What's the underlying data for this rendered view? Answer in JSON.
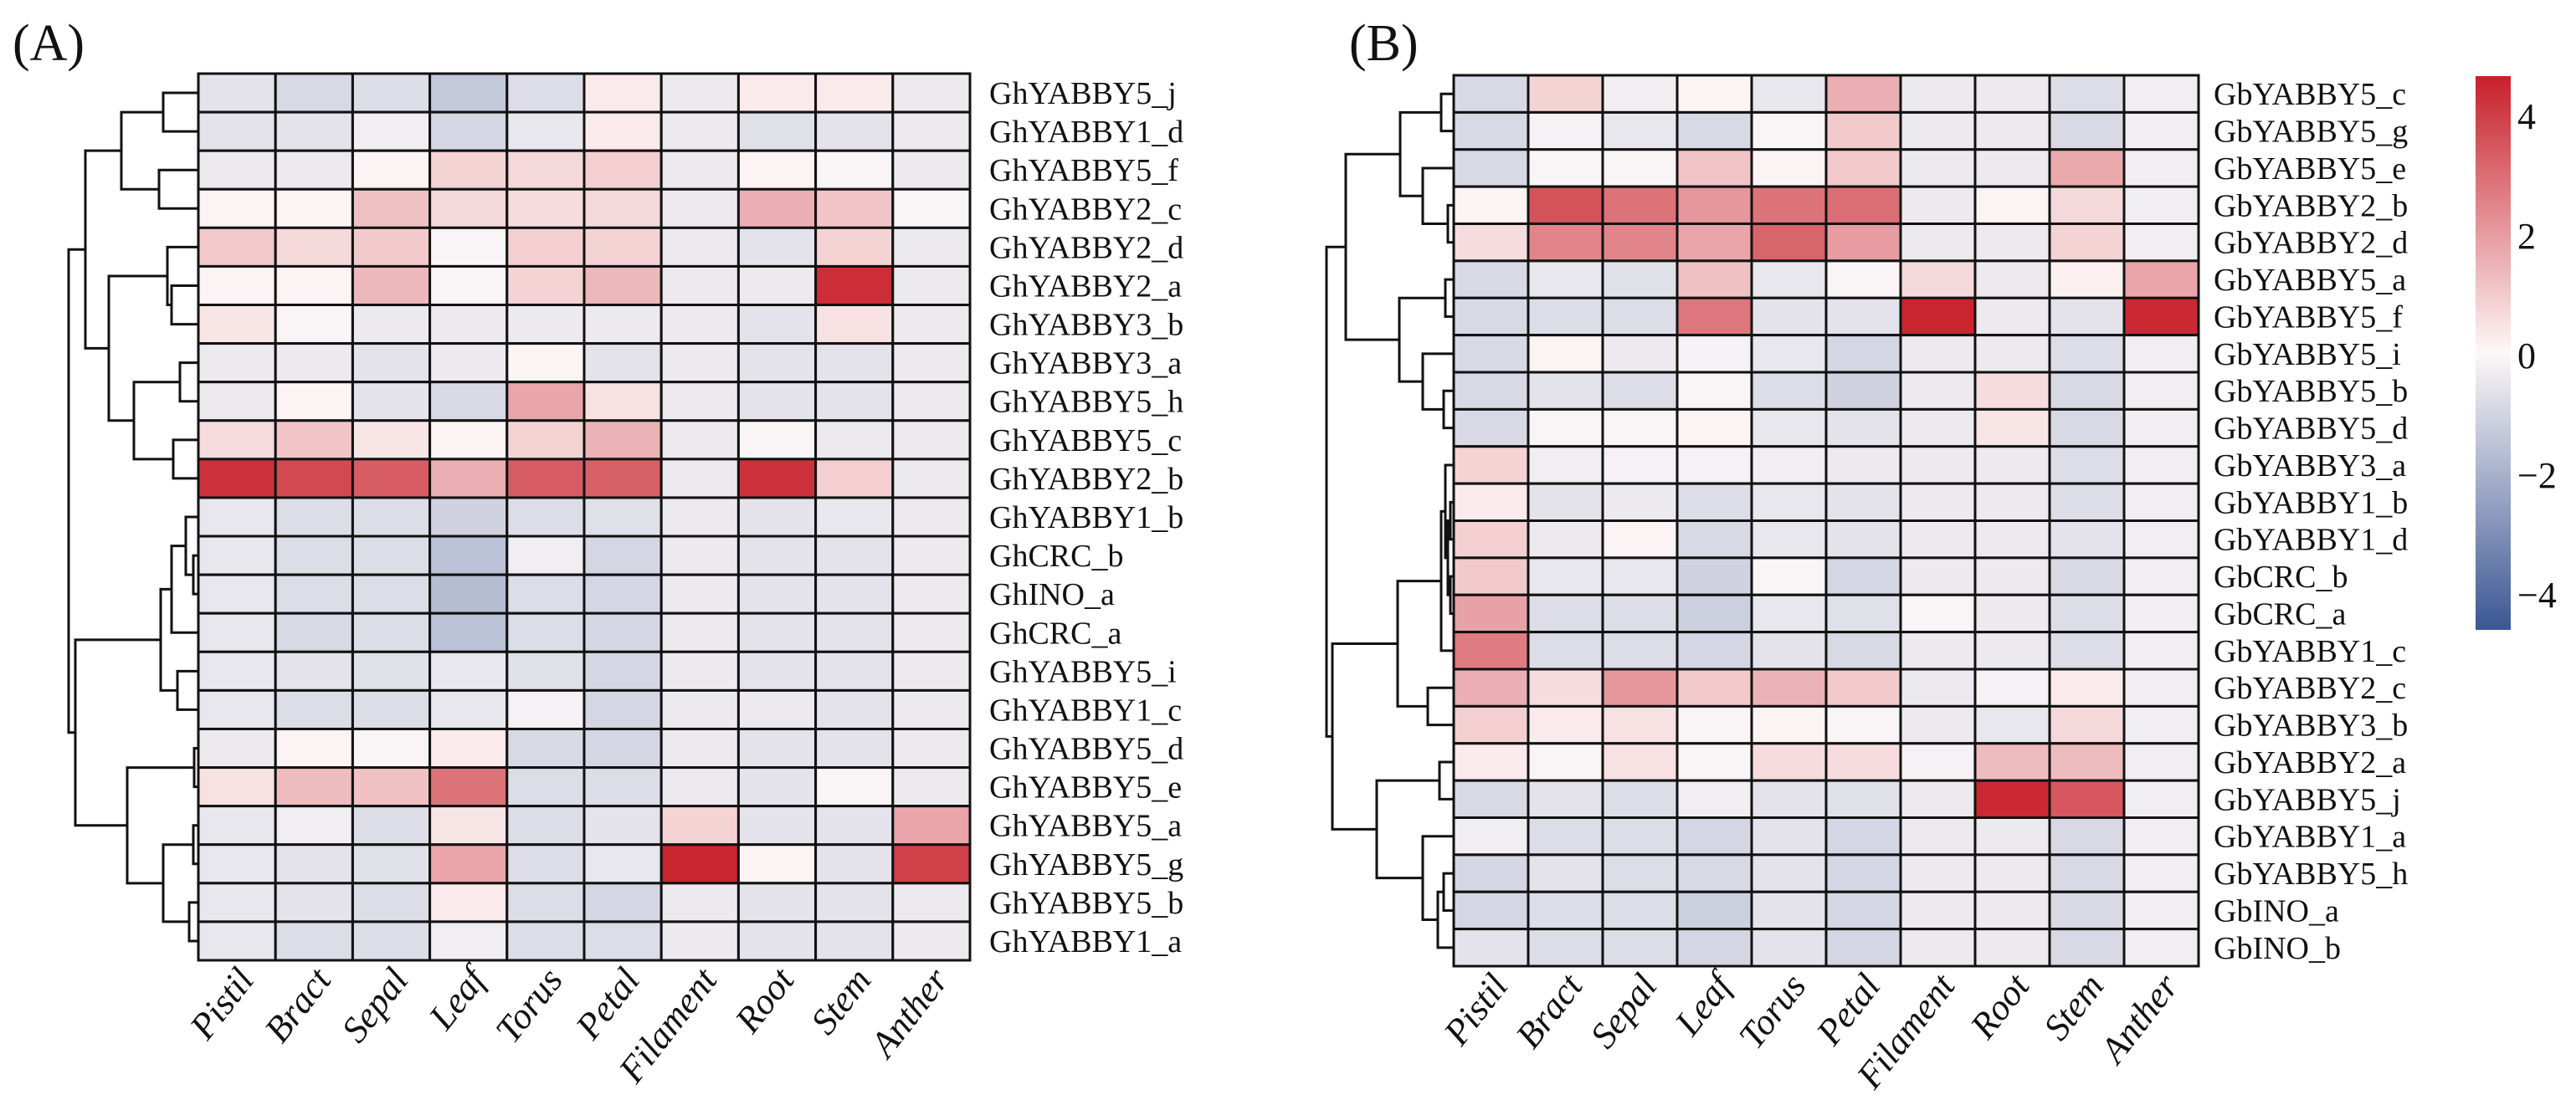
{
  "chart_data": [
    {
      "type": "heatmap",
      "panel_label": "(A)",
      "columns": [
        "Pistil",
        "Bract",
        "Sepal",
        "Leaf",
        "Torus",
        "Petal",
        "Filament",
        "Root",
        "Stem",
        "Anther"
      ],
      "rows": [
        "GhYABBY5_j",
        "GhYABBY1_d",
        "GhYABBY5_f",
        "GhYABBY2_c",
        "GhYABBY2_d",
        "GhYABBY2_a",
        "GhYABBY3_b",
        "GhYABBY3_a",
        "GhYABBY5_h",
        "GhYABBY5_c",
        "GhYABBY2_b",
        "GhYABBY1_b",
        "GhCRC_b",
        "GhINO_a",
        "GhCRC_a",
        "GhYABBY5_i",
        "GhYABBY1_c",
        "GhYABBY5_d",
        "GhYABBY5_e",
        "GhYABBY5_a",
        "GhYABBY5_g",
        "GhYABBY5_b",
        "GhYABBY1_a"
      ],
      "values": [
        [
          -0.6,
          -0.9,
          -0.8,
          -1.4,
          -0.8,
          0.3,
          -0.4,
          0.3,
          0.3,
          -0.4
        ],
        [
          -0.6,
          -0.6,
          -0.3,
          -1.0,
          -0.5,
          0.3,
          -0.4,
          -0.7,
          -0.6,
          -0.4
        ],
        [
          -0.4,
          -0.4,
          0.1,
          0.8,
          0.7,
          0.9,
          -0.4,
          0.1,
          -0.1,
          -0.4
        ],
        [
          0.1,
          0.1,
          1.2,
          0.7,
          0.6,
          0.7,
          -0.4,
          1.6,
          1.1,
          -0.1
        ],
        [
          1.0,
          0.7,
          1.0,
          -0.1,
          0.9,
          0.8,
          -0.4,
          -0.6,
          0.8,
          -0.4
        ],
        [
          0.1,
          0.1,
          1.4,
          -0.1,
          0.8,
          1.4,
          -0.4,
          -0.4,
          4.4,
          -0.4
        ],
        [
          0.4,
          -0.1,
          -0.4,
          -0.4,
          -0.4,
          -0.4,
          -0.4,
          -0.6,
          0.5,
          -0.4
        ],
        [
          -0.4,
          -0.4,
          -0.6,
          -0.4,
          0.1,
          -0.6,
          -0.4,
          -0.6,
          -0.6,
          -0.4
        ],
        [
          -0.4,
          0.1,
          -0.6,
          -0.9,
          1.8,
          0.5,
          -0.4,
          -0.6,
          -0.6,
          -0.4
        ],
        [
          0.6,
          1.1,
          0.4,
          0.1,
          0.8,
          1.5,
          -0.4,
          -0.1,
          -0.4,
          -0.4
        ],
        [
          4.3,
          3.8,
          3.4,
          1.6,
          3.4,
          3.3,
          -0.4,
          4.3,
          0.9,
          -0.4
        ],
        [
          -0.5,
          -0.8,
          -0.8,
          -1.1,
          -0.8,
          -0.7,
          -0.4,
          -0.6,
          -0.5,
          -0.4
        ],
        [
          -0.5,
          -0.8,
          -0.8,
          -1.6,
          -0.3,
          -1.0,
          -0.4,
          -0.6,
          -0.6,
          -0.4
        ],
        [
          -0.5,
          -0.8,
          -0.8,
          -1.7,
          -0.8,
          -1.0,
          -0.4,
          -0.6,
          -0.6,
          -0.4
        ],
        [
          -0.5,
          -0.9,
          -0.8,
          -1.6,
          -0.8,
          -1.0,
          -0.4,
          -0.6,
          -0.6,
          -0.4
        ],
        [
          -0.5,
          -0.6,
          -0.7,
          -0.5,
          -0.7,
          -1.0,
          -0.4,
          -0.6,
          -0.6,
          -0.4
        ],
        [
          -0.5,
          -0.8,
          -0.8,
          -0.5,
          -0.2,
          -1.0,
          -0.4,
          -0.4,
          -0.6,
          -0.4
        ],
        [
          -0.4,
          0.1,
          -0.1,
          0.3,
          -0.9,
          -1.0,
          -0.4,
          -0.6,
          -0.6,
          -0.4
        ],
        [
          0.5,
          1.3,
          1.2,
          2.9,
          -0.8,
          -0.8,
          -0.4,
          -0.6,
          -0.1,
          -0.4
        ],
        [
          -0.5,
          -0.3,
          -0.8,
          0.4,
          -0.8,
          -0.6,
          0.8,
          -0.6,
          -0.6,
          1.8
        ],
        [
          -0.5,
          -0.6,
          -0.7,
          1.8,
          -0.8,
          -0.5,
          4.6,
          0.1,
          -0.6,
          4.0
        ],
        [
          -0.5,
          -0.6,
          -0.8,
          0.3,
          -0.8,
          -1.0,
          -0.4,
          -0.6,
          -0.6,
          -0.4
        ],
        [
          -0.5,
          -0.8,
          -0.8,
          -0.3,
          -0.8,
          -0.8,
          -0.4,
          -0.6,
          -0.6,
          -0.4
        ]
      ]
    },
    {
      "type": "heatmap",
      "panel_label": "(B)",
      "columns": [
        "Pistil",
        "Bract",
        "Sepal",
        "Leaf",
        "Torus",
        "Petal",
        "Filament",
        "Root",
        "Stem",
        "Anther"
      ],
      "rows": [
        "GbYABBY5_c",
        "GbYABBY5_g",
        "GbYABBY5_e",
        "GbYABBY2_b",
        "GbYABBY2_d",
        "GbYABBY5_a",
        "GbYABBY5_f",
        "GbYABBY5_i",
        "GbYABBY5_b",
        "GbYABBY5_d",
        "GbYABBY3_a",
        "GbYABBY1_b",
        "GbYABBY1_d",
        "GbCRC_b",
        "GbCRC_a",
        "GbYABBY1_c",
        "GbYABBY2_c",
        "GbYABBY3_b",
        "GbYABBY2_a",
        "GbYABBY5_j",
        "GbYABBY1_a",
        "GbYABBY5_h",
        "GbINO_a",
        "GbINO_b"
      ],
      "values": [
        [
          -0.9,
          0.8,
          -0.3,
          0.1,
          -0.5,
          1.6,
          -0.4,
          -0.4,
          -0.8,
          -0.3
        ],
        [
          -0.9,
          -0.2,
          -0.5,
          -0.9,
          -0.1,
          1.0,
          -0.4,
          -0.4,
          -0.9,
          -0.3
        ],
        [
          -0.9,
          -0.1,
          -0.1,
          1.1,
          0.1,
          1.0,
          -0.4,
          -0.4,
          1.7,
          -0.3
        ],
        [
          0.1,
          3.6,
          2.9,
          2.1,
          2.9,
          3.0,
          -0.4,
          0.1,
          0.7,
          -0.3
        ],
        [
          0.6,
          2.5,
          2.5,
          1.8,
          3.2,
          2.0,
          -0.4,
          -0.4,
          0.8,
          -0.3
        ],
        [
          -0.9,
          -0.5,
          -0.7,
          1.2,
          -0.5,
          -0.1,
          0.7,
          -0.4,
          0.2,
          1.8
        ],
        [
          -0.9,
          -0.8,
          -0.8,
          2.8,
          -0.6,
          -0.6,
          4.6,
          -0.4,
          -0.6,
          4.5
        ],
        [
          -0.9,
          0.1,
          -0.4,
          -0.2,
          -0.5,
          -1.0,
          -0.4,
          -0.4,
          -0.8,
          -0.3
        ],
        [
          -0.9,
          -0.6,
          -0.8,
          -0.1,
          -0.8,
          -1.1,
          -0.4,
          0.6,
          -0.9,
          -0.3
        ],
        [
          -0.9,
          -0.1,
          -0.1,
          0.1,
          -0.5,
          -0.6,
          -0.4,
          0.4,
          -0.9,
          -0.3
        ],
        [
          0.8,
          -0.3,
          -0.2,
          -0.2,
          -0.3,
          -0.4,
          -0.4,
          -0.4,
          -0.8,
          -0.3
        ],
        [
          0.3,
          -0.6,
          -0.4,
          -0.8,
          -0.5,
          -0.6,
          -0.4,
          -0.4,
          -0.8,
          -0.3
        ],
        [
          0.9,
          -0.4,
          0.1,
          -0.9,
          -0.5,
          -0.6,
          -0.4,
          -0.4,
          -0.6,
          -0.3
        ],
        [
          1.0,
          -0.5,
          -0.5,
          -1.1,
          -0.1,
          -1.0,
          -0.4,
          -0.4,
          -0.9,
          -0.3
        ],
        [
          1.9,
          -0.8,
          -0.8,
          -1.2,
          -0.5,
          -0.7,
          -0.1,
          -0.4,
          -0.8,
          -0.3
        ],
        [
          2.7,
          -0.8,
          -0.8,
          -1.0,
          -0.6,
          -0.9,
          -0.4,
          -0.4,
          -0.8,
          -0.3
        ],
        [
          1.6,
          0.6,
          2.1,
          1.0,
          1.5,
          1.0,
          -0.4,
          -0.2,
          0.3,
          -0.3
        ],
        [
          0.9,
          0.3,
          0.5,
          -0.1,
          0.1,
          -0.1,
          -0.4,
          -0.5,
          0.7,
          -0.3
        ],
        [
          0.3,
          -0.1,
          0.5,
          -0.1,
          0.6,
          0.6,
          -0.2,
          1.3,
          1.3,
          -0.3
        ],
        [
          -0.9,
          -0.6,
          -0.8,
          -0.3,
          -0.6,
          -0.7,
          -0.4,
          4.5,
          3.5,
          -0.3
        ],
        [
          -0.3,
          -0.8,
          -0.8,
          -1.0,
          -0.6,
          -1.0,
          -0.4,
          -0.4,
          -0.9,
          -0.3
        ],
        [
          -1.0,
          -0.6,
          -0.8,
          -0.9,
          -0.6,
          -1.0,
          -0.4,
          -0.4,
          -0.9,
          -0.3
        ],
        [
          -1.0,
          -0.8,
          -0.8,
          -1.2,
          -0.6,
          -1.0,
          -0.4,
          -0.4,
          -0.9,
          -0.3
        ],
        [
          -0.6,
          -0.8,
          -0.8,
          -1.0,
          -0.6,
          -1.0,
          -0.4,
          -0.4,
          -0.9,
          -0.3
        ]
      ]
    }
  ],
  "colorbar": {
    "range": [
      -4.7,
      4.7
    ],
    "ticks": [
      4,
      2,
      0,
      -2,
      -4
    ],
    "tick_labels": [
      "4",
      "2",
      "0",
      "−2",
      "−4"
    ],
    "colors": {
      "high": "#c8202a",
      "mid": "#fdf8f8",
      "low": "#3b5793"
    }
  }
}
